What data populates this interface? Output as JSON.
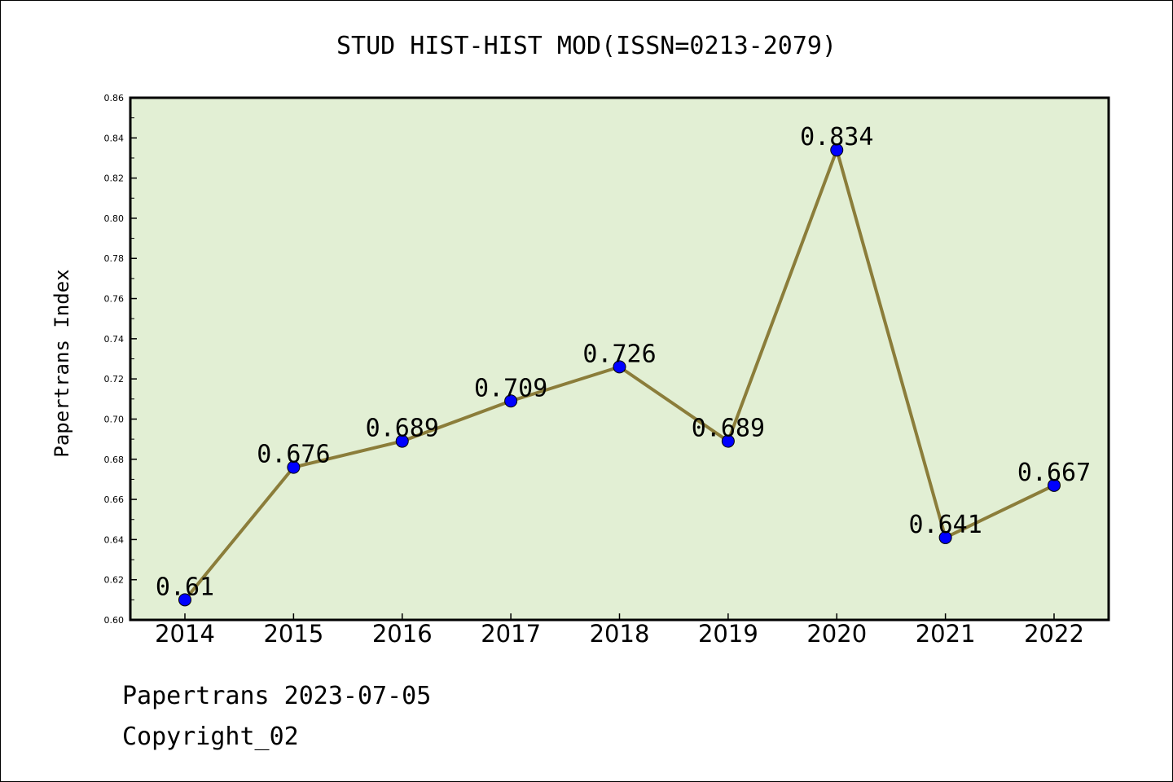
{
  "chart_data": {
    "type": "line",
    "title": "STUD HIST-HIST MOD(ISSN=0213-2079)",
    "xlabel": "",
    "ylabel": "Papertrans Index",
    "categories": [
      "2014",
      "2015",
      "2016",
      "2017",
      "2018",
      "2019",
      "2020",
      "2021",
      "2022"
    ],
    "values": [
      0.61,
      0.676,
      0.689,
      0.709,
      0.726,
      0.689,
      0.834,
      0.641,
      0.667
    ],
    "data_labels": [
      "0.61",
      "0.676",
      "0.689",
      "0.709",
      "0.726",
      "0.689",
      "0.834",
      "0.641",
      "0.667"
    ],
    "ylim": [
      0.6,
      0.86
    ],
    "yticks": [
      "0.60",
      "0.62",
      "0.64",
      "0.66",
      "0.68",
      "0.70",
      "0.72",
      "0.74",
      "0.76",
      "0.78",
      "0.80",
      "0.82",
      "0.84",
      "0.86"
    ],
    "grid": false,
    "legend": "none",
    "colors": {
      "plot_background": "#e2efd4",
      "line": "#8b7d3a",
      "marker": "#0000ff"
    }
  },
  "footer": {
    "line1": "Papertrans 2023-07-05",
    "line2": "Copyright_02"
  }
}
